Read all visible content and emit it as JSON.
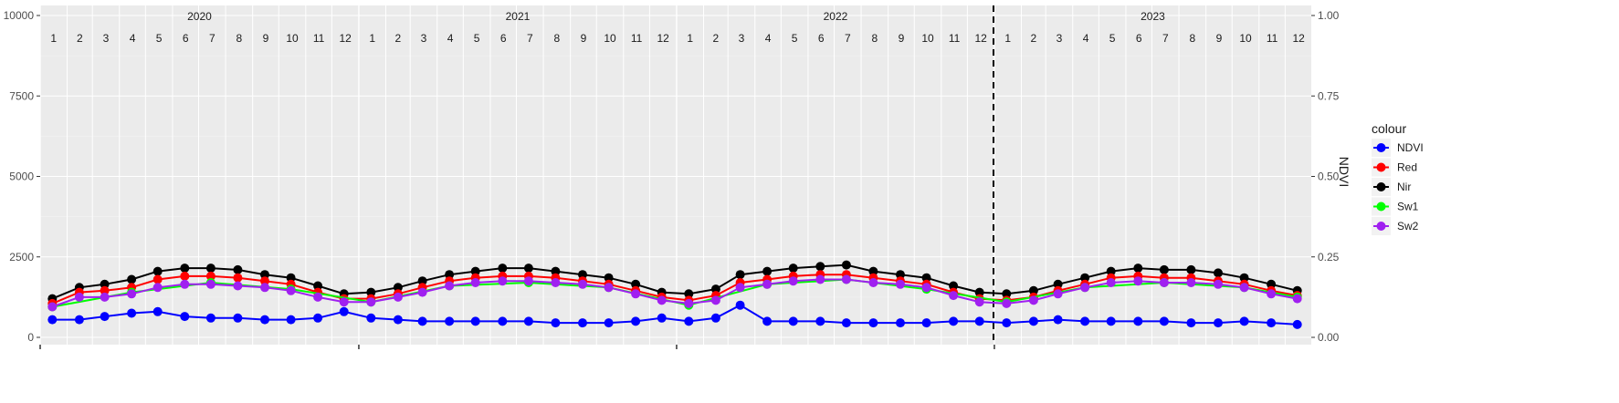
{
  "chart_data": {
    "type": "line",
    "title": "",
    "xlabel": "",
    "ylabel": "",
    "y2label": "NDVI",
    "ylim": [
      0,
      10000
    ],
    "y2lim": [
      0,
      1
    ],
    "yticks": [
      "0",
      "2500",
      "5000",
      "7500",
      "10000"
    ],
    "y2ticks": [
      "0.00",
      "0.25",
      "0.50",
      "0.75",
      "1.00"
    ],
    "years": [
      "2020",
      "2021",
      "2022",
      "2023"
    ],
    "months": [
      "1",
      "2",
      "3",
      "4",
      "5",
      "6",
      "7",
      "8",
      "9",
      "10",
      "11",
      "12"
    ],
    "x_range": [
      "2020-01-01",
      "2023-12-31"
    ],
    "vline": "2022-12-31",
    "grid": true,
    "legend": {
      "title": "colour",
      "placement": "right"
    },
    "colors": {
      "NDVI": "#0000ff",
      "Red": "#ff0000",
      "Nir": "#000000",
      "Sw1": "#00ff00",
      "Sw2": "#a020f0"
    },
    "series": [
      {
        "name": "Nir",
        "axis": "left",
        "x": [
          "2020-01-15",
          "2020-02-15",
          "2020-03-15",
          "2020-04-15",
          "2020-05-15",
          "2020-06-15",
          "2020-07-15",
          "2020-08-15",
          "2020-09-15",
          "2020-10-15",
          "2020-11-15",
          "2020-12-15",
          "2021-01-15",
          "2021-02-15",
          "2021-03-15",
          "2021-04-15",
          "2021-05-15",
          "2021-06-15",
          "2021-07-15",
          "2021-08-15",
          "2021-09-15",
          "2021-10-15",
          "2021-11-15",
          "2021-12-15",
          "2022-01-15",
          "2022-02-15",
          "2022-03-15",
          "2022-04-15",
          "2022-05-15",
          "2022-06-15",
          "2022-07-15",
          "2022-08-15",
          "2022-09-15",
          "2022-10-15",
          "2022-11-15",
          "2022-12-15",
          "2023-01-15",
          "2023-02-15",
          "2023-03-15",
          "2023-04-15",
          "2023-05-15",
          "2023-06-15",
          "2023-07-15",
          "2023-08-15",
          "2023-09-15",
          "2023-10-15",
          "2023-11-15",
          "2023-12-15"
        ],
        "values": [
          1200,
          1550,
          1650,
          1800,
          2050,
          2150,
          2150,
          2100,
          1950,
          1850,
          1600,
          1350,
          1400,
          1550,
          1750,
          1950,
          2050,
          2150,
          2150,
          2050,
          1950,
          1850,
          1650,
          1400,
          1350,
          1500,
          1950,
          2050,
          2150,
          2200,
          2250,
          2050,
          1950,
          1850,
          1600,
          1400,
          1350,
          1450,
          1650,
          1850,
          2050,
          2150,
          2100,
          2100,
          2000,
          1850,
          1650,
          1450
        ]
      },
      {
        "name": "Red",
        "axis": "left",
        "x": [
          "2020-01-15",
          "2020-02-15",
          "2020-03-15",
          "2020-04-15",
          "2020-05-15",
          "2020-06-15",
          "2020-07-15",
          "2020-08-15",
          "2020-09-15",
          "2020-10-15",
          "2020-11-15",
          "2020-12-15",
          "2021-01-15",
          "2021-02-15",
          "2021-03-15",
          "2021-04-15",
          "2021-05-15",
          "2021-06-15",
          "2021-07-15",
          "2021-08-15",
          "2021-09-15",
          "2021-10-15",
          "2021-11-15",
          "2021-12-15",
          "2022-01-15",
          "2022-02-15",
          "2022-03-15",
          "2022-04-15",
          "2022-05-15",
          "2022-06-15",
          "2022-07-15",
          "2022-08-15",
          "2022-09-15",
          "2022-10-15",
          "2022-11-15",
          "2022-12-15",
          "2023-01-15",
          "2023-02-15",
          "2023-03-15",
          "2023-04-15",
          "2023-05-15",
          "2023-06-15",
          "2023-07-15",
          "2023-08-15",
          "2023-09-15",
          "2023-10-15",
          "2023-11-15",
          "2023-12-15"
        ],
        "values": [
          1050,
          1400,
          1450,
          1550,
          1800,
          1900,
          1900,
          1850,
          1750,
          1650,
          1400,
          1200,
          1200,
          1350,
          1550,
          1750,
          1850,
          1900,
          1900,
          1850,
          1750,
          1650,
          1450,
          1250,
          1150,
          1300,
          1700,
          1800,
          1900,
          1950,
          1950,
          1850,
          1750,
          1650,
          1400,
          1200,
          1150,
          1250,
          1450,
          1650,
          1850,
          1900,
          1850,
          1850,
          1750,
          1650,
          1450,
          1300
        ]
      },
      {
        "name": "Sw1",
        "axis": "left",
        "x": [
          "2020-01-15",
          "2020-04-15",
          "2020-07-15",
          "2020-10-15",
          "2021-01-15",
          "2021-04-15",
          "2021-07-15",
          "2021-10-15",
          "2022-01-15",
          "2022-04-15",
          "2022-07-15",
          "2022-10-15",
          "2023-01-15",
          "2023-04-15",
          "2023-07-15",
          "2023-10-15",
          "2023-12-15"
        ],
        "values": [
          950,
          1400,
          1700,
          1500,
          1100,
          1600,
          1700,
          1550,
          1000,
          1650,
          1800,
          1500,
          1100,
          1550,
          1700,
          1550,
          1250
        ]
      },
      {
        "name": "Sw2",
        "axis": "left",
        "x": [
          "2020-01-15",
          "2020-02-15",
          "2020-03-15",
          "2020-04-15",
          "2020-05-15",
          "2020-06-15",
          "2020-07-15",
          "2020-08-15",
          "2020-09-15",
          "2020-10-15",
          "2020-11-15",
          "2020-12-15",
          "2021-01-15",
          "2021-02-15",
          "2021-03-15",
          "2021-04-15",
          "2021-05-15",
          "2021-06-15",
          "2021-07-15",
          "2021-08-15",
          "2021-09-15",
          "2021-10-15",
          "2021-11-15",
          "2021-12-15",
          "2022-01-15",
          "2022-02-15",
          "2022-03-15",
          "2022-04-15",
          "2022-05-15",
          "2022-06-15",
          "2022-07-15",
          "2022-08-15",
          "2022-09-15",
          "2022-10-15",
          "2022-11-15",
          "2022-12-15",
          "2023-01-15",
          "2023-02-15",
          "2023-03-15",
          "2023-04-15",
          "2023-05-15",
          "2023-06-15",
          "2023-07-15",
          "2023-08-15",
          "2023-09-15",
          "2023-10-15",
          "2023-11-15",
          "2023-12-15"
        ],
        "values": [
          950,
          1250,
          1250,
          1350,
          1550,
          1650,
          1650,
          1600,
          1550,
          1450,
          1250,
          1100,
          1100,
          1250,
          1400,
          1600,
          1700,
          1750,
          1750,
          1700,
          1650,
          1550,
          1350,
          1150,
          1050,
          1150,
          1550,
          1650,
          1750,
          1800,
          1800,
          1700,
          1650,
          1550,
          1300,
          1100,
          1050,
          1150,
          1350,
          1550,
          1700,
          1750,
          1700,
          1700,
          1650,
          1550,
          1350,
          1200
        ]
      },
      {
        "name": "NDVI",
        "axis": "right",
        "x": [
          "2020-01-15",
          "2020-02-15",
          "2020-03-15",
          "2020-04-15",
          "2020-05-15",
          "2020-06-15",
          "2020-07-15",
          "2020-08-15",
          "2020-09-15",
          "2020-10-15",
          "2020-11-15",
          "2020-12-15",
          "2021-01-15",
          "2021-02-15",
          "2021-03-15",
          "2021-04-15",
          "2021-05-15",
          "2021-06-15",
          "2021-07-15",
          "2021-08-15",
          "2021-09-15",
          "2021-10-15",
          "2021-11-15",
          "2021-12-15",
          "2022-01-15",
          "2022-02-15",
          "2022-03-15",
          "2022-04-15",
          "2022-05-15",
          "2022-06-15",
          "2022-07-15",
          "2022-08-15",
          "2022-09-15",
          "2022-10-15",
          "2022-11-15",
          "2022-12-15",
          "2023-01-15",
          "2023-02-15",
          "2023-03-15",
          "2023-04-15",
          "2023-05-15",
          "2023-06-15",
          "2023-07-15",
          "2023-08-15",
          "2023-09-15",
          "2023-10-15",
          "2023-11-15",
          "2023-12-15"
        ],
        "values": [
          0.055,
          0.055,
          0.065,
          0.075,
          0.08,
          0.065,
          0.06,
          0.06,
          0.055,
          0.055,
          0.06,
          0.08,
          0.06,
          0.055,
          0.05,
          0.05,
          0.05,
          0.05,
          0.05,
          0.045,
          0.045,
          0.045,
          0.05,
          0.06,
          0.05,
          0.06,
          0.1,
          0.05,
          0.05,
          0.05,
          0.045,
          0.045,
          0.045,
          0.045,
          0.05,
          0.05,
          0.045,
          0.05,
          0.055,
          0.05,
          0.05,
          0.05,
          0.05,
          0.045,
          0.045,
          0.05,
          0.045,
          0.04
        ]
      }
    ]
  }
}
